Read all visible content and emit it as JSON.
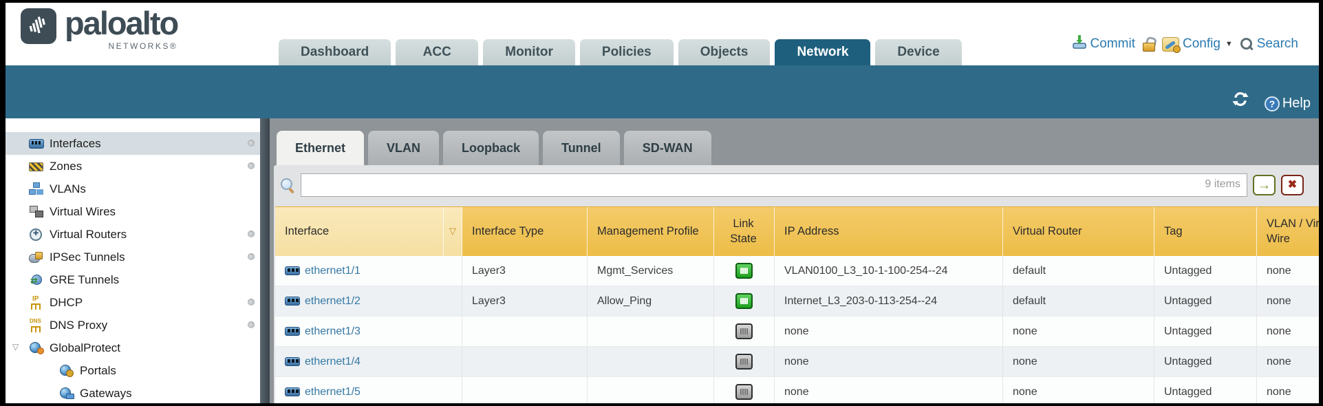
{
  "brand": {
    "name": "paloalto",
    "tagline": "NETWORKS®"
  },
  "nav": {
    "tabs": [
      {
        "label": "Dashboard",
        "active": false
      },
      {
        "label": "ACC",
        "active": false
      },
      {
        "label": "Monitor",
        "active": false
      },
      {
        "label": "Policies",
        "active": false
      },
      {
        "label": "Objects",
        "active": false
      },
      {
        "label": "Network",
        "active": true
      },
      {
        "label": "Device",
        "active": false
      }
    ],
    "actions": {
      "commit_label": "Commit",
      "config_label": "Config",
      "search_label": "Search"
    }
  },
  "toolbar": {
    "help_label": "Help"
  },
  "sidebar": {
    "items": [
      {
        "label": "Interfaces",
        "icon": "interfaces",
        "selected": true,
        "dot": true
      },
      {
        "label": "Zones",
        "icon": "zones",
        "dot": true
      },
      {
        "label": "VLANs",
        "icon": "vlans"
      },
      {
        "label": "Virtual Wires",
        "icon": "virtual-wires"
      },
      {
        "label": "Virtual Routers",
        "icon": "virtual-routers",
        "dot": true
      },
      {
        "label": "IPSec Tunnels",
        "icon": "ipsec-tunnels",
        "dot": true
      },
      {
        "label": "GRE Tunnels",
        "icon": "gre-tunnels"
      },
      {
        "label": "DHCP",
        "icon": "dhcp",
        "dot": true
      },
      {
        "label": "DNS Proxy",
        "icon": "dns-proxy",
        "dot": true
      },
      {
        "label": "GlobalProtect",
        "icon": "globalprotect",
        "expandable": true,
        "expanded": true
      },
      {
        "label": "Portals",
        "icon": "portals",
        "indent": 1
      },
      {
        "label": "Gateways",
        "icon": "gateways",
        "indent": 1
      }
    ]
  },
  "content": {
    "tabs": [
      {
        "label": "Ethernet",
        "active": true
      },
      {
        "label": "VLAN",
        "active": false
      },
      {
        "label": "Loopback",
        "active": false
      },
      {
        "label": "Tunnel",
        "active": false
      },
      {
        "label": "SD-WAN",
        "active": false
      }
    ],
    "filter": {
      "value": "",
      "count": "9 items"
    },
    "table": {
      "columns": [
        "Interface",
        "Interface Type",
        "Management Profile",
        "Link State",
        "IP Address",
        "Virtual Router",
        "Tag",
        "VLAN / Virtual Wire"
      ],
      "rows": [
        {
          "interface": "ethernet1/1",
          "interface_type": "Layer3",
          "management_profile": "Mgmt_Services",
          "link_state": "up",
          "ip_address": "VLAN0100_L3_10-1-100-254--24",
          "virtual_router": "default",
          "tag": "Untagged",
          "vlan_virtual_wire": "none"
        },
        {
          "interface": "ethernet1/2",
          "interface_type": "Layer3",
          "management_profile": "Allow_Ping",
          "link_state": "up",
          "ip_address": "Internet_L3_203-0-113-254--24",
          "virtual_router": "default",
          "tag": "Untagged",
          "vlan_virtual_wire": "none"
        },
        {
          "interface": "ethernet1/3",
          "interface_type": "",
          "management_profile": "",
          "link_state": "down",
          "ip_address": "none",
          "virtual_router": "none",
          "tag": "Untagged",
          "vlan_virtual_wire": "none"
        },
        {
          "interface": "ethernet1/4",
          "interface_type": "",
          "management_profile": "",
          "link_state": "down",
          "ip_address": "none",
          "virtual_router": "none",
          "tag": "Untagged",
          "vlan_virtual_wire": "none"
        },
        {
          "interface": "ethernet1/5",
          "interface_type": "",
          "management_profile": "",
          "link_state": "down",
          "ip_address": "none",
          "virtual_router": "none",
          "tag": "Untagged",
          "vlan_virtual_wire": "none"
        }
      ]
    }
  },
  "colors": {
    "accent_teal": "#2f6b89",
    "active_tab": "#1e5f7d",
    "table_header": "#f1c45c",
    "table_header_sorted": "#f8e6ae",
    "link": "#3578a3",
    "link_state_up": "#2eb82e",
    "action_link": "#2a7ab0"
  }
}
